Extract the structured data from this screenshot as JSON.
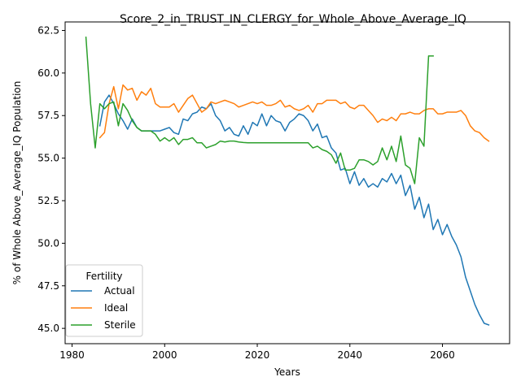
{
  "chart_data": {
    "type": "line",
    "title": "Score_2_in_TRUST_IN_CLERGY_for_Whole_Above_Average_IQ",
    "xlabel": "Years",
    "ylabel": "% of Whole Above_Average_IQ Population",
    "xlim": [
      1978.5,
      2074.5
    ],
    "ylim": [
      44.1,
      63.0
    ],
    "xticks": [
      1980,
      2000,
      2020,
      2040,
      2060
    ],
    "yticks": [
      45.0,
      47.5,
      50.0,
      52.5,
      55.0,
      57.5,
      60.0,
      62.5
    ],
    "xtick_labels": [
      "1980",
      "2000",
      "2020",
      "2040",
      "2060"
    ],
    "ytick_labels": [
      "45.0",
      "47.5",
      "50.0",
      "52.5",
      "55.0",
      "57.5",
      "60.0",
      "62.5"
    ],
    "grid": false,
    "legend": {
      "title": "Fertility",
      "position": "lower-left"
    },
    "series": [
      {
        "name": "Actual",
        "color": "#1f77b4",
        "x": [
          1986,
          1987,
          1988,
          1989,
          1990,
          1991,
          1992,
          1993,
          1994,
          1995,
          1996,
          1997,
          1998,
          1999,
          2000,
          2001,
          2002,
          2003,
          2004,
          2005,
          2006,
          2007,
          2008,
          2009,
          2010,
          2011,
          2012,
          2013,
          2014,
          2015,
          2016,
          2017,
          2018,
          2019,
          2020,
          2021,
          2022,
          2023,
          2024,
          2025,
          2026,
          2027,
          2028,
          2029,
          2030,
          2031,
          2032,
          2033,
          2034,
          2035,
          2036,
          2037,
          2038,
          2039,
          2040,
          2041,
          2042,
          2043,
          2044,
          2045,
          2046,
          2047,
          2048,
          2049,
          2050,
          2051,
          2052,
          2053,
          2054,
          2055,
          2056,
          2057,
          2058,
          2059,
          2060,
          2061,
          2062,
          2063,
          2064,
          2065,
          2066,
          2067,
          2068,
          2069,
          2070
        ],
        "y": [
          56.9,
          58.3,
          58.7,
          58.2,
          57.6,
          57.2,
          56.7,
          57.3,
          56.8,
          56.6,
          56.6,
          56.6,
          56.6,
          56.6,
          56.7,
          56.8,
          56.5,
          56.4,
          57.3,
          57.2,
          57.6,
          57.7,
          58.0,
          57.9,
          58.2,
          57.5,
          57.2,
          56.6,
          56.8,
          56.4,
          56.3,
          56.9,
          56.4,
          57.1,
          56.9,
          57.6,
          56.9,
          57.5,
          57.2,
          57.1,
          56.6,
          57.1,
          57.3,
          57.6,
          57.5,
          57.2,
          56.6,
          57.0,
          56.2,
          56.3,
          55.6,
          55.3,
          54.3,
          54.4,
          53.5,
          54.2,
          53.4,
          53.8,
          53.3,
          53.5,
          53.3,
          53.8,
          53.6,
          54.1,
          53.5,
          54.0,
          52.8,
          53.4,
          52.0,
          52.7,
          51.5,
          52.3,
          50.8,
          51.4,
          50.5,
          51.1,
          50.4,
          49.9,
          49.2,
          48.0,
          47.2,
          46.4,
          45.8,
          45.3,
          45.2
        ]
      },
      {
        "name": "Ideal",
        "color": "#ff7f0e",
        "x": [
          1986,
          1987,
          1988,
          1989,
          1990,
          1991,
          1992,
          1993,
          1994,
          1995,
          1996,
          1997,
          1998,
          1999,
          2000,
          2001,
          2002,
          2003,
          2004,
          2005,
          2006,
          2007,
          2008,
          2009,
          2010,
          2011,
          2012,
          2013,
          2014,
          2015,
          2016,
          2017,
          2018,
          2019,
          2020,
          2021,
          2022,
          2023,
          2024,
          2025,
          2026,
          2027,
          2028,
          2029,
          2030,
          2031,
          2032,
          2033,
          2034,
          2035,
          2036,
          2037,
          2038,
          2039,
          2040,
          2041,
          2042,
          2043,
          2044,
          2045,
          2046,
          2047,
          2048,
          2049,
          2050,
          2051,
          2052,
          2053,
          2054,
          2055,
          2056,
          2057,
          2058,
          2059,
          2060,
          2061,
          2062,
          2063,
          2064,
          2065,
          2066,
          2067,
          2068,
          2069,
          2070
        ],
        "y": [
          56.2,
          56.5,
          58.2,
          59.2,
          57.9,
          59.3,
          59.0,
          59.1,
          58.4,
          58.9,
          58.7,
          59.1,
          58.2,
          58.0,
          58.0,
          58.0,
          58.2,
          57.7,
          58.1,
          58.5,
          58.7,
          58.2,
          57.7,
          57.9,
          58.3,
          58.2,
          58.3,
          58.4,
          58.3,
          58.2,
          58.0,
          58.1,
          58.2,
          58.3,
          58.2,
          58.3,
          58.1,
          58.1,
          58.2,
          58.4,
          58.0,
          58.1,
          57.9,
          57.8,
          57.9,
          58.1,
          57.7,
          58.2,
          58.2,
          58.4,
          58.4,
          58.4,
          58.2,
          58.3,
          58.0,
          57.9,
          58.1,
          58.1,
          57.8,
          57.5,
          57.1,
          57.3,
          57.2,
          57.4,
          57.2,
          57.6,
          57.6,
          57.7,
          57.6,
          57.6,
          57.8,
          57.9,
          57.9,
          57.6,
          57.6,
          57.7,
          57.7,
          57.7,
          57.8,
          57.5,
          56.9,
          56.6,
          56.5,
          56.2,
          56.0
        ]
      },
      {
        "name": "Sterile",
        "color": "#2ca02c",
        "x": [
          1983,
          1984,
          1985,
          1986,
          1987,
          1988,
          1989,
          1990,
          1991,
          1992,
          1993,
          1994,
          1995,
          1996,
          1997,
          1998,
          1999,
          2000,
          2001,
          2002,
          2003,
          2004,
          2005,
          2006,
          2007,
          2008,
          2009,
          2010,
          2011,
          2012,
          2013,
          2014,
          2015,
          2016,
          2017,
          2018,
          2019,
          2020,
          2021,
          2022,
          2023,
          2024,
          2025,
          2026,
          2027,
          2028,
          2029,
          2030,
          2031,
          2032,
          2033,
          2034,
          2035,
          2036,
          2037,
          2038,
          2039,
          2040,
          2041,
          2042,
          2043,
          2044,
          2045,
          2046,
          2047,
          2048,
          2049,
          2050,
          2051,
          2052,
          2053,
          2054,
          2055,
          2056,
          2057,
          2058
        ],
        "y": [
          62.1,
          58.2,
          55.6,
          58.2,
          57.9,
          58.2,
          58.3,
          56.9,
          58.2,
          57.8,
          57.2,
          56.8,
          56.6,
          56.6,
          56.6,
          56.4,
          56.0,
          56.2,
          56.0,
          56.2,
          55.8,
          56.1,
          56.1,
          56.2,
          55.9,
          55.9,
          55.6,
          55.7,
          55.8,
          56.0,
          55.95,
          56.0,
          56.0,
          55.95,
          55.92,
          55.9,
          55.9,
          55.9,
          55.9,
          55.9,
          55.9,
          55.9,
          55.9,
          55.9,
          55.9,
          55.9,
          55.9,
          55.9,
          55.9,
          55.6,
          55.7,
          55.5,
          55.4,
          55.2,
          54.7,
          55.3,
          54.3,
          54.3,
          54.4,
          54.9,
          54.9,
          54.8,
          54.6,
          54.8,
          55.6,
          54.9,
          55.7,
          54.8,
          56.3,
          54.6,
          54.4,
          53.5,
          56.2,
          55.7,
          61.0,
          61.0
        ]
      }
    ]
  }
}
